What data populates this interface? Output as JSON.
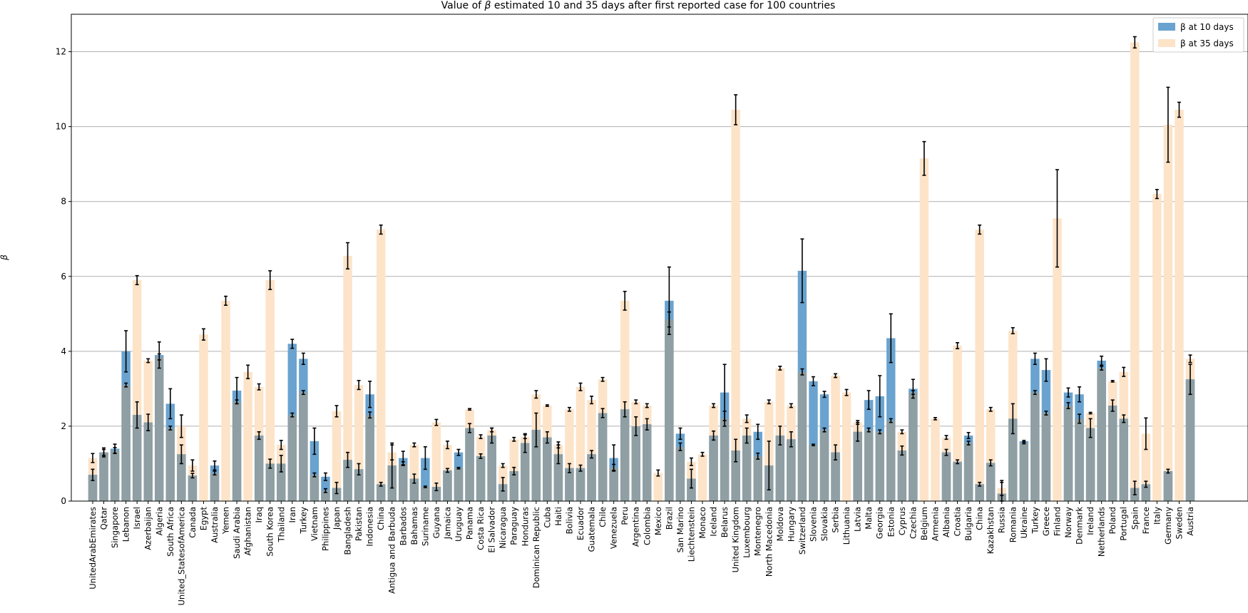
{
  "chart_data": {
    "type": "bar",
    "title_pre": "Value of ",
    "title_symbol": "β",
    "title_post": " estimated 10 and 35 days after first reported case for 100 countries",
    "ylabel": "β",
    "ylim": [
      0,
      13
    ],
    "yticks": [
      0,
      2,
      4,
      6,
      8,
      10,
      12
    ],
    "grid": "y",
    "legend_position": "top-right",
    "colors": {
      "day10": "#6aa3cf",
      "day35": "#fde3c8",
      "overlap": "#8f9fa4",
      "error": "#000000"
    },
    "categories": [
      "UnitedArabEmirates",
      "Qatar",
      "Singapore",
      "Lebanon",
      "Israel",
      "Azerbaijan",
      "Algeria",
      "South Africa",
      "United_StatesofAmerica",
      "Canada",
      "Egypt",
      "Australia",
      "Yemen",
      "Saudi Arabia",
      "Afghanistan",
      "Iraq",
      "South Korea",
      "Thailand",
      "Iran",
      "Turkey",
      "Vietnam",
      "Philippines",
      "Japan",
      "Bangladesh",
      "Pakistan",
      "Indonesia",
      "China",
      "Antigua and Barbuda",
      "Barbados",
      "Bahamas",
      "Suriname",
      "Guyana",
      "Jamaica",
      "Uruguay",
      "Panama",
      "Costa Rica",
      "El Salvador",
      "Nicaragua",
      "Paraguay",
      "Honduras",
      "Dominican Republic",
      "Cuba",
      "Haiti",
      "Bolivia",
      "Ecuador",
      "Guatemala",
      "Chile",
      "Venezuela",
      "Peru",
      "Argentina",
      "Colombia",
      "Mexico",
      "Brazil",
      "San Marino",
      "Liechtenstein",
      "Monaco",
      "Iceland",
      "Belarus",
      "United Kingdom",
      "Luxembourg",
      "Montenegro",
      "North Macedonia",
      "Moldova",
      "Hungary",
      "Switzerland",
      "Slovenia",
      "Slovakia",
      "Serbia",
      "Lithuania",
      "Latvia",
      "Malta",
      "Georgia",
      "Estonia",
      "Cyprus",
      "Czechia",
      "Belgium",
      "Armenia",
      "Albania",
      "Croatia",
      "Bulgaria",
      "China",
      "Kazakhstan",
      "Russia",
      "Romania",
      "Ukraine",
      "Turkey",
      "Greece",
      "Finland",
      "Norway",
      "Denmark",
      "Ireland",
      "Netherlands",
      "Poland",
      "Portugal",
      "Spain",
      "France",
      "Italy",
      "Germany",
      "Sweden",
      "Austria"
    ],
    "series": [
      {
        "name": "β at 10 days",
        "values": [
          0.7,
          1.3,
          1.4,
          4.0,
          2.3,
          2.1,
          3.9,
          2.6,
          1.25,
          0.68,
          0,
          0.95,
          0,
          2.95,
          0,
          1.75,
          1.0,
          1.0,
          4.2,
          3.8,
          1.6,
          0.65,
          0.35,
          1.1,
          0.85,
          2.85,
          0.45,
          0.95,
          1.15,
          0.6,
          1.15,
          0.38,
          0.82,
          1.3,
          1.95,
          1.2,
          1.75,
          0.45,
          0.8,
          1.55,
          1.9,
          1.7,
          1.25,
          0.88,
          0.88,
          1.25,
          2.35,
          1.15,
          2.45,
          2.0,
          2.05,
          0,
          5.35,
          1.8,
          0.6,
          0,
          1.75,
          2.9,
          1.35,
          1.75,
          1.85,
          0.95,
          1.75,
          1.65,
          6.15,
          3.2,
          2.85,
          1.3,
          0,
          1.85,
          2.7,
          2.8,
          4.35,
          1.35,
          3.0,
          0,
          0,
          1.3,
          1.05,
          1.75,
          0.45,
          1.02,
          0.2,
          2.2,
          1.6,
          3.8,
          3.5,
          0,
          2.9,
          2.85,
          1.95,
          3.75,
          2.55,
          2.2,
          0.35,
          0.45,
          0,
          0.8,
          0,
          3.25
        ],
        "errors": [
          0.15,
          0.12,
          0.12,
          0.55,
          0.35,
          0.22,
          0.35,
          0.4,
          0.25,
          0.06,
          0,
          0.12,
          0,
          0.35,
          0,
          0.1,
          0.12,
          0.22,
          0.12,
          0.15,
          0.35,
          0.1,
          0.15,
          0.2,
          0.15,
          0.35,
          0.05,
          0.6,
          0.18,
          0.12,
          0.3,
          0.1,
          0.05,
          0.08,
          0.12,
          0.06,
          0.2,
          0.18,
          0.1,
          0.25,
          0.45,
          0.15,
          0.25,
          0.12,
          0.08,
          0.1,
          0.12,
          0.35,
          0.2,
          0.25,
          0.15,
          0,
          0.9,
          0.15,
          0.25,
          0,
          0.12,
          0.75,
          0.3,
          0.2,
          0.2,
          0.65,
          0.25,
          0.2,
          0.85,
          0.12,
          0.08,
          0.2,
          0,
          0.25,
          0.25,
          0.55,
          0.65,
          0.12,
          0.25,
          0,
          0,
          0.08,
          0.05,
          0.08,
          0.05,
          0.08,
          0.3,
          0.4,
          0.02,
          0.15,
          0.3,
          0,
          0.12,
          0.2,
          0.25,
          0.12,
          0.15,
          0.1,
          0.18,
          0.08,
          0,
          0.05,
          0,
          0.4
        ]
      },
      {
        "name": "β at 35 days",
        "values": [
          1.15,
          1.3,
          1.35,
          3.1,
          5.9,
          3.75,
          3.85,
          1.95,
          2.0,
          0.95,
          4.45,
          0.75,
          5.35,
          2.65,
          3.45,
          3.05,
          5.9,
          1.5,
          2.3,
          2.9,
          0.7,
          0.28,
          2.4,
          6.55,
          3.1,
          2.3,
          7.25,
          1.3,
          1.0,
          1.5,
          0.38,
          2.1,
          1.5,
          0.88,
          2.45,
          1.72,
          1.9,
          0.95,
          1.65,
          1.72,
          2.85,
          2.55,
          1.5,
          2.45,
          3.05,
          2.7,
          3.25,
          0.9,
          5.35,
          2.65,
          2.55,
          0.75,
          4.85,
          1.45,
          1.05,
          1.25,
          2.55,
          2.2,
          10.45,
          2.2,
          1.2,
          2.65,
          3.55,
          2.55,
          3.45,
          1.5,
          1.9,
          3.35,
          2.9,
          2.1,
          1.9,
          1.85,
          2.15,
          1.85,
          2.9,
          9.15,
          2.2,
          1.7,
          4.15,
          1.55,
          7.25,
          2.45,
          0.35,
          4.55,
          1.55,
          2.9,
          2.35,
          7.55,
          2.55,
          2.2,
          2.35,
          3.55,
          3.2,
          3.45,
          12.25,
          1.8,
          8.2,
          10.05,
          10.45,
          3.8
        ],
        "errors": [
          0.12,
          0.08,
          0.08,
          0.05,
          0.12,
          0.05,
          0.08,
          0.05,
          0.3,
          0.15,
          0.15,
          0.05,
          0.12,
          0.05,
          0.18,
          0.08,
          0.25,
          0.12,
          0.05,
          0.05,
          0.05,
          0.05,
          0.15,
          0.35,
          0.12,
          0.08,
          0.12,
          0.2,
          0.05,
          0.05,
          0.02,
          0.08,
          0.1,
          0.02,
          0.02,
          0.05,
          0.05,
          0.05,
          0.05,
          0.05,
          0.1,
          0.02,
          0.08,
          0.05,
          0.1,
          0.1,
          0.05,
          0.08,
          0.25,
          0.05,
          0.05,
          0.08,
          0.2,
          0.1,
          0.1,
          0.05,
          0.05,
          0.2,
          0.4,
          0.1,
          0.08,
          0.05,
          0.05,
          0.05,
          0.08,
          0.02,
          0.05,
          0.05,
          0.08,
          0.05,
          0.05,
          0.05,
          0.05,
          0.05,
          0.05,
          0.45,
          0.03,
          0.05,
          0.08,
          0.05,
          0.12,
          0.05,
          0.2,
          0.08,
          0.02,
          0.05,
          0.05,
          1.3,
          0.08,
          0.12,
          0.02,
          0.05,
          0.02,
          0.12,
          0.15,
          0.42,
          0.12,
          1.0,
          0.2,
          0.1
        ]
      }
    ]
  }
}
